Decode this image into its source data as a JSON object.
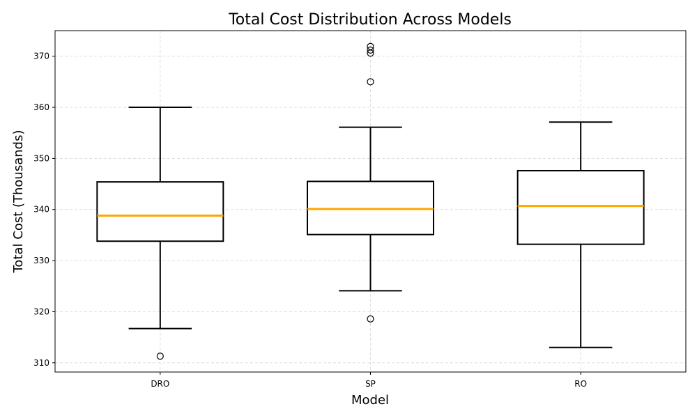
{
  "chart_data": {
    "type": "box",
    "title": "Total Cost Distribution Across Models",
    "xlabel": "Model",
    "ylabel": "Total Cost (Thousands)",
    "categories": [
      "DRO",
      "SP",
      "RO"
    ],
    "ylim": [
      308.2,
      375
    ],
    "yticks": [
      310,
      320,
      330,
      340,
      350,
      360,
      370
    ],
    "grid": true,
    "colors": {
      "box": "#000000",
      "median": "#ffa500",
      "grid": "#dddddd"
    },
    "boxes": [
      {
        "name": "DRO",
        "whisker_low": 316.7,
        "q1": 333.8,
        "median": 338.8,
        "q3": 345.4,
        "whisker_high": 360.0,
        "outliers": [
          311.3
        ]
      },
      {
        "name": "SP",
        "whisker_low": 324.1,
        "q1": 335.1,
        "median": 340.1,
        "q3": 345.5,
        "whisker_high": 356.1,
        "outliers": [
          318.6,
          365.0,
          370.6,
          371.2,
          371.9
        ]
      },
      {
        "name": "RO",
        "whisker_low": 313.0,
        "q1": 333.2,
        "median": 340.7,
        "q3": 347.6,
        "whisker_high": 357.1,
        "outliers": []
      }
    ]
  }
}
